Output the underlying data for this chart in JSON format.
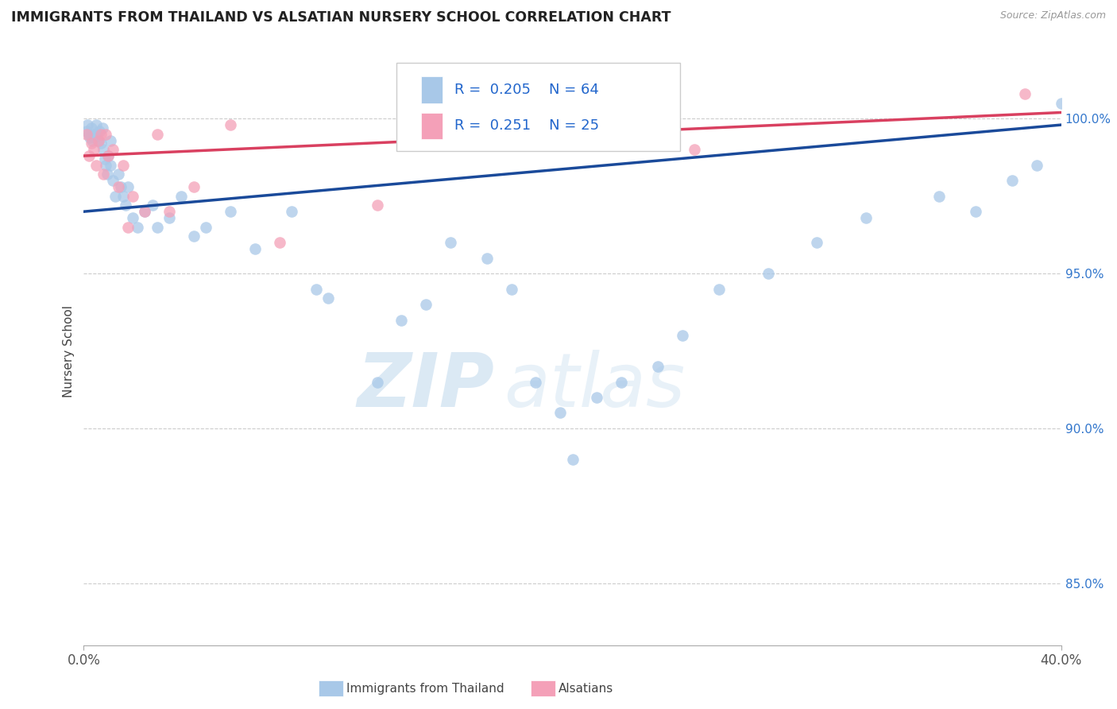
{
  "title": "IMMIGRANTS FROM THAILAND VS ALSATIAN NURSERY SCHOOL CORRELATION CHART",
  "source": "Source: ZipAtlas.com",
  "ylabel": "Nursery School",
  "x_min": 0.0,
  "x_max": 40.0,
  "y_min": 83.0,
  "y_max": 102.0,
  "y_ticks": [
    85.0,
    90.0,
    95.0,
    100.0
  ],
  "y_tick_labels": [
    "85.0%",
    "90.0%",
    "95.0%",
    "100.0%"
  ],
  "blue_label": "Immigrants from Thailand",
  "pink_label": "Alsatians",
  "blue_R": "0.205",
  "blue_N": "64",
  "pink_R": "0.251",
  "pink_N": "25",
  "blue_color": "#a8c8e8",
  "pink_color": "#f4a0b8",
  "blue_line_color": "#1a4a9a",
  "pink_line_color": "#d94060",
  "watermark_zip": "ZIP",
  "watermark_atlas": "atlas",
  "blue_line_x": [
    0.0,
    40.0
  ],
  "blue_line_y": [
    97.0,
    99.8
  ],
  "pink_line_x": [
    0.0,
    40.0
  ],
  "pink_line_y": [
    98.8,
    100.2
  ],
  "blue_x": [
    0.1,
    0.15,
    0.2,
    0.25,
    0.3,
    0.35,
    0.4,
    0.45,
    0.5,
    0.55,
    0.6,
    0.65,
    0.7,
    0.75,
    0.8,
    0.85,
    0.9,
    0.95,
    1.0,
    1.1,
    1.1,
    1.2,
    1.3,
    1.4,
    1.5,
    1.6,
    1.7,
    1.8,
    2.0,
    2.2,
    2.5,
    2.8,
    3.0,
    3.5,
    4.0,
    4.5,
    5.0,
    6.0,
    7.0,
    8.5,
    9.5,
    10.0,
    12.0,
    13.0,
    14.0,
    15.0,
    16.5,
    17.5,
    18.5,
    19.5,
    20.0,
    21.0,
    22.0,
    23.5,
    24.5,
    26.0,
    28.0,
    30.0,
    32.0,
    35.0,
    36.5,
    38.0,
    39.0,
    40.0
  ],
  "blue_y": [
    99.6,
    99.8,
    99.5,
    99.4,
    99.7,
    99.3,
    99.5,
    99.4,
    99.8,
    99.5,
    99.3,
    99.6,
    99.2,
    99.7,
    99.0,
    98.7,
    98.5,
    98.2,
    98.8,
    98.5,
    99.3,
    98.0,
    97.5,
    98.2,
    97.8,
    97.5,
    97.2,
    97.8,
    96.8,
    96.5,
    97.0,
    97.2,
    96.5,
    96.8,
    97.5,
    96.2,
    96.5,
    97.0,
    95.8,
    97.0,
    94.5,
    94.2,
    91.5,
    93.5,
    94.0,
    96.0,
    95.5,
    94.5,
    91.5,
    90.5,
    89.0,
    91.0,
    91.5,
    92.0,
    93.0,
    94.5,
    95.0,
    96.0,
    96.8,
    97.5,
    97.0,
    98.0,
    98.5,
    100.5
  ],
  "pink_x": [
    0.1,
    0.2,
    0.3,
    0.4,
    0.5,
    0.6,
    0.7,
    0.8,
    0.9,
    1.0,
    1.2,
    1.4,
    1.6,
    1.8,
    2.0,
    2.5,
    3.0,
    3.5,
    4.5,
    6.0,
    8.0,
    12.0,
    20.0,
    25.0,
    38.5
  ],
  "pink_y": [
    99.5,
    98.8,
    99.2,
    99.0,
    98.5,
    99.3,
    99.5,
    98.2,
    99.5,
    98.8,
    99.0,
    97.8,
    98.5,
    96.5,
    97.5,
    97.0,
    99.5,
    97.0,
    97.8,
    99.8,
    96.0,
    97.2,
    99.8,
    99.0,
    100.8
  ]
}
